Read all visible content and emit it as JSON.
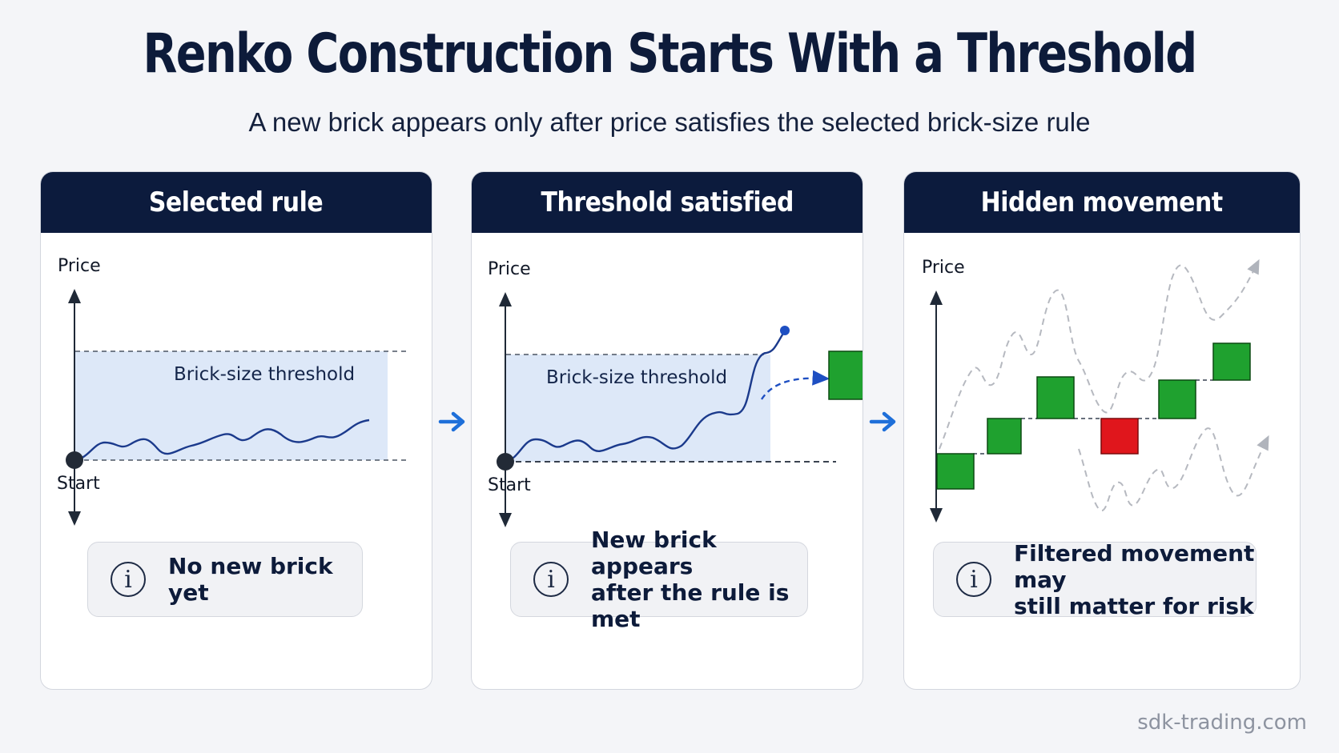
{
  "title": "Renko Construction Starts With a Threshold",
  "subtitle": "A new brick appears only after price satisfies the selected brick-size rule",
  "panels": [
    {
      "header": "Selected rule",
      "y_axis_label": "Price",
      "start_label": "Start",
      "band_label": "Brick-size threshold",
      "info": "No new brick yet"
    },
    {
      "header": "Threshold satisfied",
      "y_axis_label": "Price",
      "start_label": "Start",
      "band_label": "Brick-size threshold",
      "info": "New brick appears\nafter the rule is met"
    },
    {
      "header": "Hidden movement",
      "y_axis_label": "Price",
      "info": "Filtered movement may\nstill matter for risk"
    }
  ],
  "bricks": [
    "up",
    "up",
    "up",
    "down",
    "up",
    "up"
  ],
  "colors": {
    "navy": "#0c1b3d",
    "band": "#dde8f8",
    "price_line": "#1b3a8c",
    "flow_arrow": "#1e6fd9",
    "brick_up": "#1fa12f",
    "brick_down": "#e0161c"
  },
  "icons": [
    "info-icon",
    "arrow-right-icon"
  ],
  "watermark": "sdk-trading.com"
}
